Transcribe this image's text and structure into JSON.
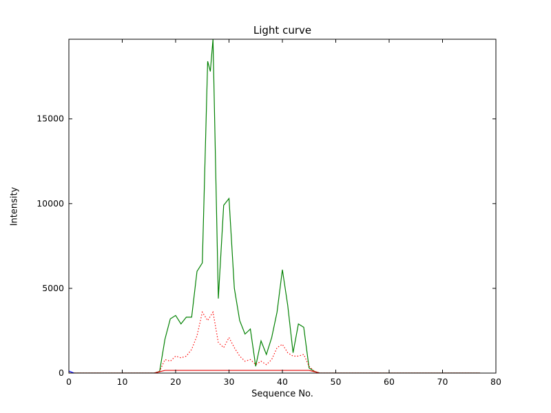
{
  "figure": {
    "background": "#ffffff",
    "frame_color": "#000000"
  },
  "chart_data": {
    "type": "line",
    "title": "Light curve",
    "xlabel": "Sequence No.",
    "ylabel": "Intensity",
    "xlim": [
      0,
      80
    ],
    "ylim": [
      0,
      19700
    ],
    "xticks": [
      0,
      10,
      20,
      30,
      40,
      50,
      60,
      70,
      80
    ],
    "yticks": [
      0,
      5000,
      10000,
      15000
    ],
    "grid": false,
    "legend": null,
    "series": [
      {
        "name": "green-solid",
        "color": "#008000",
        "style": "solid",
        "x": [
          0,
          1,
          2,
          3,
          4,
          5,
          6,
          7,
          8,
          9,
          10,
          11,
          12,
          13,
          14,
          15,
          16,
          17,
          18,
          19,
          20,
          21,
          22,
          23,
          24,
          25,
          26,
          26.5,
          27,
          28,
          29,
          30,
          31,
          32,
          33,
          34,
          35,
          36,
          37,
          38,
          39,
          40,
          41,
          42,
          43,
          44,
          45,
          46,
          47,
          48,
          49,
          50,
          51,
          52,
          53,
          54,
          55,
          56,
          57,
          58,
          59,
          60,
          61,
          62,
          63,
          64,
          65,
          66,
          67,
          68,
          69,
          70,
          71,
          72,
          73,
          74,
          75,
          76,
          77
        ],
        "y": [
          0,
          0,
          0,
          0,
          0,
          0,
          0,
          0,
          0,
          0,
          0,
          0,
          0,
          0,
          0,
          0,
          0,
          100,
          2000,
          3200,
          3400,
          2900,
          3300,
          3300,
          6000,
          6500,
          18400,
          17800,
          19700,
          4400,
          9900,
          10300,
          5000,
          3100,
          2300,
          2600,
          400,
          1900,
          1100,
          2100,
          3600,
          6100,
          4000,
          1200,
          2900,
          2700,
          300,
          100,
          0,
          0,
          0,
          0,
          0,
          0,
          0,
          0,
          0,
          0,
          0,
          0,
          0,
          0,
          0,
          0,
          0,
          0,
          0,
          0,
          0,
          0,
          0,
          0,
          0,
          0,
          0,
          0,
          0,
          0,
          0
        ]
      },
      {
        "name": "red-dotted",
        "color": "#ff0000",
        "style": "dotted",
        "x": [
          0,
          1,
          2,
          3,
          4,
          5,
          6,
          7,
          8,
          9,
          10,
          11,
          12,
          13,
          14,
          15,
          16,
          17,
          18,
          19,
          20,
          21,
          22,
          23,
          24,
          25,
          26,
          27,
          28,
          29,
          30,
          31,
          32,
          33,
          34,
          35,
          36,
          37,
          38,
          39,
          40,
          41,
          42,
          43,
          44,
          45,
          46,
          47,
          48,
          49,
          50,
          51,
          52,
          53,
          54,
          55,
          56,
          57,
          58,
          59,
          60,
          61,
          62,
          63,
          64,
          65,
          66,
          67,
          68,
          69,
          70,
          71,
          72,
          73,
          74,
          75,
          76,
          77
        ],
        "y": [
          0,
          0,
          0,
          0,
          0,
          0,
          0,
          0,
          0,
          0,
          0,
          0,
          0,
          0,
          0,
          0,
          0,
          100,
          800,
          700,
          1000,
          900,
          1000,
          1400,
          2200,
          3600,
          3100,
          3600,
          1800,
          1500,
          2100,
          1500,
          1000,
          700,
          800,
          500,
          700,
          500,
          800,
          1500,
          1700,
          1200,
          1000,
          1000,
          1100,
          400,
          100,
          0,
          0,
          0,
          0,
          0,
          0,
          0,
          0,
          0,
          0,
          0,
          0,
          0,
          0,
          0,
          0,
          0,
          0,
          0,
          0,
          0,
          0,
          0,
          0,
          0,
          0,
          0,
          0,
          0,
          0,
          0
        ]
      },
      {
        "name": "red-solid",
        "color": "#e00000",
        "style": "solid",
        "x": [
          0,
          1,
          2,
          3,
          4,
          5,
          6,
          7,
          8,
          9,
          10,
          11,
          12,
          13,
          14,
          15,
          16,
          17,
          18,
          19,
          20,
          21,
          22,
          23,
          24,
          25,
          26,
          27,
          28,
          29,
          30,
          31,
          32,
          33,
          34,
          35,
          36,
          37,
          38,
          39,
          40,
          41,
          42,
          43,
          44,
          45,
          46,
          47,
          48,
          49,
          50,
          51,
          52,
          53,
          54,
          55,
          56,
          57,
          58,
          59,
          60,
          61,
          62,
          63,
          64,
          65,
          66,
          67,
          68,
          69,
          70,
          71,
          72,
          73,
          74,
          75,
          76,
          77
        ],
        "y": [
          0,
          0,
          0,
          0,
          0,
          0,
          0,
          0,
          0,
          0,
          0,
          0,
          0,
          0,
          0,
          0,
          0,
          80,
          160,
          160,
          160,
          160,
          160,
          160,
          160,
          160,
          160,
          160,
          160,
          160,
          160,
          160,
          160,
          160,
          160,
          160,
          160,
          160,
          160,
          160,
          160,
          160,
          160,
          160,
          160,
          160,
          80,
          0,
          0,
          0,
          0,
          0,
          0,
          0,
          0,
          0,
          0,
          0,
          0,
          0,
          0,
          0,
          0,
          0,
          0,
          0,
          0,
          0,
          0,
          0,
          0,
          0,
          0,
          0,
          0,
          0,
          0,
          0
        ]
      },
      {
        "name": "blue-solid",
        "color": "#0000ff",
        "style": "solid",
        "x": [
          0,
          1
        ],
        "y": [
          120,
          0
        ]
      }
    ]
  }
}
